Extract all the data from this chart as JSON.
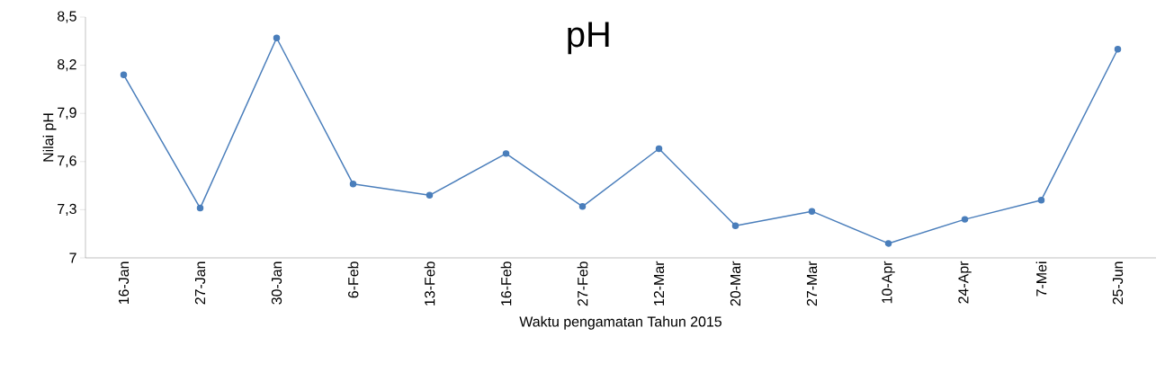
{
  "chart_data": {
    "type": "line",
    "title": "pH",
    "xlabel": "Waktu pengamatan Tahun 2015",
    "ylabel": "Nilai pH",
    "categories": [
      "16-Jan",
      "27-Jan",
      "30-Jan",
      "6-Feb",
      "13-Feb",
      "16-Feb",
      "27-Feb",
      "12-Mar",
      "20-Mar",
      "27-Mar",
      "10-Apr",
      "24-Apr",
      "7-Mei",
      "25-Jun"
    ],
    "values": [
      8.14,
      7.31,
      8.37,
      7.46,
      7.39,
      7.65,
      7.32,
      7.68,
      7.2,
      7.29,
      7.09,
      7.24,
      7.36,
      8.3
    ],
    "color": "#4a7ebb",
    "marker": "circle",
    "ylim": [
      7,
      8.5
    ],
    "yticks": [
      7,
      {
        "value": 7.3,
        "label": "7,3"
      },
      {
        "value": 7.6,
        "label": "7,6"
      },
      {
        "value": 7.9,
        "label": "7,9"
      },
      {
        "value": 8.2,
        "label": "8,2"
      },
      {
        "value": 8.5,
        "label": "8,5"
      }
    ],
    "grid": false
  }
}
